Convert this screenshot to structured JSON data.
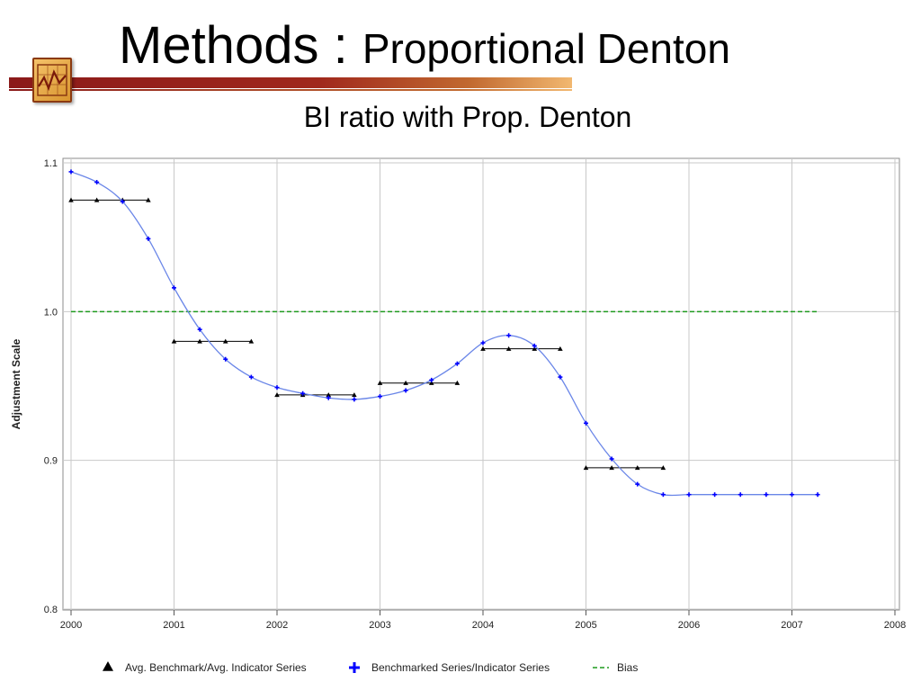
{
  "slide": {
    "title_main": "Methods : ",
    "title_sub": "Proportional Denton"
  },
  "chart_data": {
    "type": "line",
    "title": "BI ratio with Prop. Denton",
    "xlabel": "",
    "ylabel": "Adjustment Scale",
    "xlim": [
      2000,
      2008
    ],
    "ylim": [
      0.8,
      1.1
    ],
    "x_ticks": [
      "2000",
      "2001",
      "2002",
      "2003",
      "2004",
      "2005",
      "2006",
      "2007",
      "2008"
    ],
    "y_ticks": [
      "0.8",
      "0.9",
      "1.0",
      "1.1"
    ],
    "grid": true,
    "legend_position": "bottom",
    "colors": {
      "benchmark": "#000000",
      "benchmarked": "#0000ff",
      "benchmarked_line": "#6a86e8",
      "bias": "#1f9c1f",
      "grid": "#c8c8c8"
    },
    "series": [
      {
        "name": "Avg. Benchmark/Avg. Indicator Series",
        "marker": "triangle",
        "segments": [
          {
            "x": [
              2000.0,
              2000.25,
              2000.5,
              2000.75
            ],
            "y": [
              1.075,
              1.075,
              1.075,
              1.075
            ]
          },
          {
            "x": [
              2001.0,
              2001.25,
              2001.5,
              2001.75
            ],
            "y": [
              0.98,
              0.98,
              0.98,
              0.98
            ]
          },
          {
            "x": [
              2002.0,
              2002.25,
              2002.5,
              2002.75
            ],
            "y": [
              0.944,
              0.944,
              0.944,
              0.944
            ]
          },
          {
            "x": [
              2003.0,
              2003.25,
              2003.5,
              2003.75
            ],
            "y": [
              0.952,
              0.952,
              0.952,
              0.952
            ]
          },
          {
            "x": [
              2004.0,
              2004.25,
              2004.5,
              2004.75
            ],
            "y": [
              0.975,
              0.975,
              0.975,
              0.975
            ]
          },
          {
            "x": [
              2005.0,
              2005.25,
              2005.5,
              2005.75
            ],
            "y": [
              0.895,
              0.895,
              0.895,
              0.895
            ]
          }
        ]
      },
      {
        "name": "Benchmarked Series/Indicator Series",
        "marker": "plus",
        "x": [
          2000.0,
          2000.25,
          2000.5,
          2000.75,
          2001.0,
          2001.25,
          2001.5,
          2001.75,
          2002.0,
          2002.25,
          2002.5,
          2002.75,
          2003.0,
          2003.25,
          2003.5,
          2003.75,
          2004.0,
          2004.25,
          2004.5,
          2004.75,
          2005.0,
          2005.25,
          2005.5,
          2005.75,
          2006.0,
          2006.25,
          2006.5,
          2006.75,
          2007.0,
          2007.25
        ],
        "y": [
          1.094,
          1.087,
          1.074,
          1.049,
          1.016,
          0.988,
          0.968,
          0.956,
          0.949,
          0.945,
          0.942,
          0.941,
          0.943,
          0.947,
          0.954,
          0.965,
          0.979,
          0.984,
          0.977,
          0.956,
          0.925,
          0.901,
          0.884,
          0.877,
          0.877,
          0.877,
          0.877,
          0.877,
          0.877,
          0.877
        ]
      },
      {
        "name": "Bias",
        "style": "dashed",
        "x": [
          2000.0,
          2007.25
        ],
        "y": [
          1.0,
          1.0
        ]
      }
    ]
  }
}
